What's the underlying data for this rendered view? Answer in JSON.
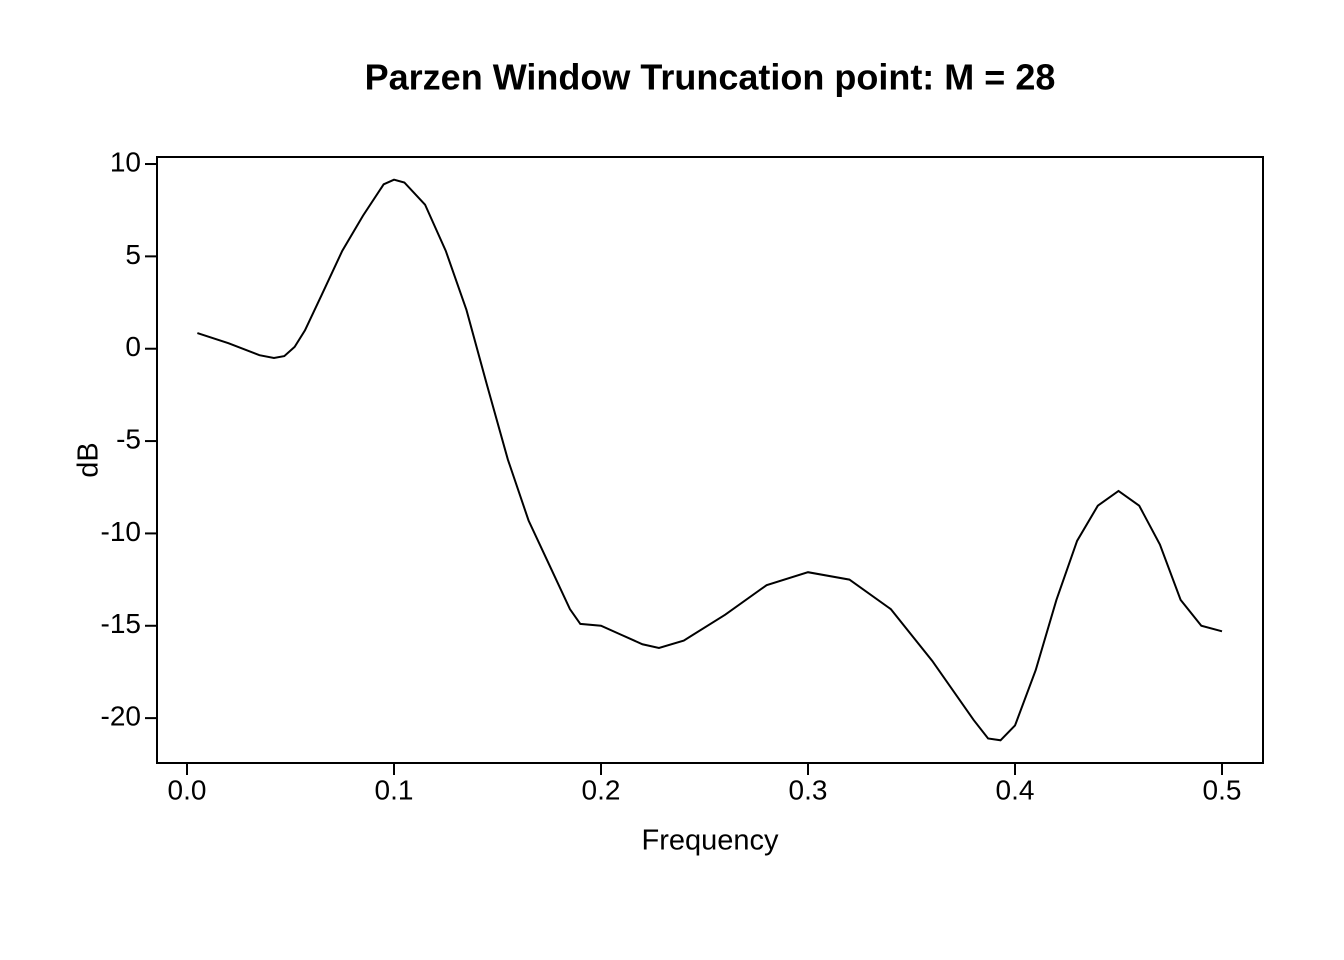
{
  "chart_data": {
    "type": "line",
    "title": "Parzen Window Truncation point: M = 28",
    "xlabel": "Frequency",
    "ylabel": "dB",
    "x": [
      0.005,
      0.02,
      0.035,
      0.042,
      0.047,
      0.052,
      0.057,
      0.065,
      0.075,
      0.085,
      0.095,
      0.1,
      0.105,
      0.115,
      0.125,
      0.135,
      0.145,
      0.155,
      0.165,
      0.175,
      0.185,
      0.19,
      0.2,
      0.21,
      0.22,
      0.228,
      0.24,
      0.26,
      0.28,
      0.3,
      0.32,
      0.34,
      0.36,
      0.38,
      0.387,
      0.393,
      0.4,
      0.41,
      0.42,
      0.43,
      0.44,
      0.45,
      0.46,
      0.47,
      0.48,
      0.49,
      0.5
    ],
    "values": [
      0.85,
      0.3,
      -0.35,
      -0.5,
      -0.4,
      0.1,
      1.0,
      2.9,
      5.3,
      7.2,
      8.9,
      9.15,
      9.0,
      7.8,
      5.3,
      2.1,
      -2.0,
      -6.0,
      -9.3,
      -11.7,
      -14.1,
      -14.9,
      -15.0,
      -15.5,
      -16.0,
      -16.2,
      -15.8,
      -14.4,
      -12.8,
      -12.1,
      -12.5,
      -14.1,
      -16.9,
      -20.1,
      -21.1,
      -21.2,
      -20.4,
      -17.4,
      -13.6,
      -10.4,
      -8.5,
      -7.7,
      -8.5,
      -10.6,
      -13.6,
      -15.0,
      -15.3
    ],
    "color": "#000000",
    "xlim": [
      -0.0145,
      0.5198
    ],
    "ylim": [
      -22.43,
      10.38
    ],
    "xticks": [
      {
        "value": 0,
        "label": "0.0"
      },
      0.1,
      0.2,
      0.3,
      0.4,
      0.5
    ],
    "yticks": [
      -20,
      -15,
      -10,
      -5,
      0,
      5,
      10
    ],
    "grid": false
  }
}
